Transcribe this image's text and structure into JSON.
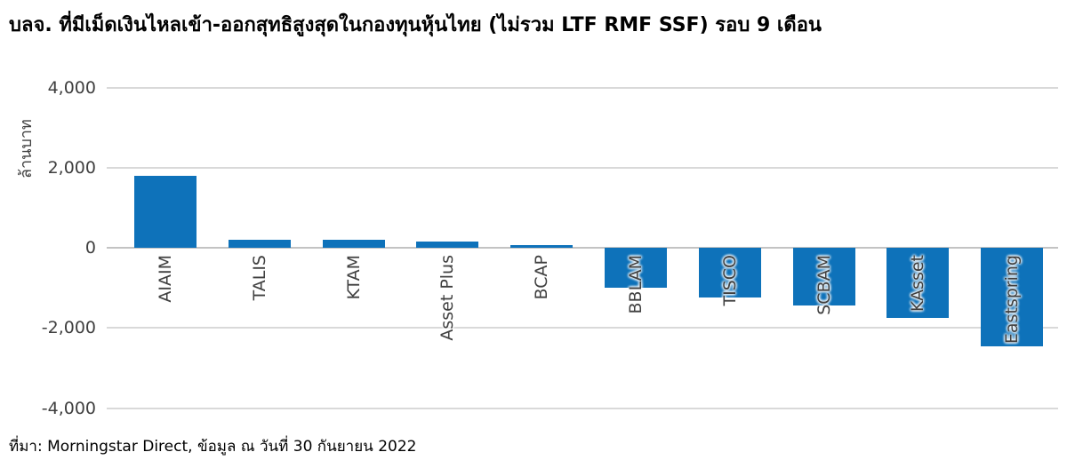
{
  "title": "บลจ. ที่มีเม็ดเงินไหลเข้า-ออกสุทธิสูงสุดในกองทุนหุ้นไทย (ไม่รวม LTF RMF SSF) รอบ 9 เดือน",
  "source_note": "ที่มา: Morningstar Direct, ข้อมูล ณ วันที่ 30 กันยายน 2022",
  "colors": {
    "bar": "#0e72ba",
    "gridline": "#d9d9d9",
    "zero_line": "#c3c3c3",
    "title_text": "#000000",
    "axis_text": "#3f3f3f"
  },
  "chart_data": {
    "type": "bar",
    "categories": [
      "AIAIM",
      "TALIS",
      "KTAM",
      "Asset Plus",
      "BCAP",
      "BBLAM",
      "TISCO",
      "SCBAM",
      "KAsset",
      "Eastspring"
    ],
    "values": [
      1800,
      200,
      200,
      150,
      60,
      -1000,
      -1250,
      -1450,
      -1750,
      -2450
    ],
    "title": "บลจ. ที่มีเม็ดเงินไหลเข้า-ออกสุทธิสูงสุดในกองทุนหุ้นไทย (ไม่รวม LTF RMF SSF) รอบ 9 เดือน",
    "xlabel": "",
    "ylabel": "ล้านบาท",
    "ylim": [
      -4000,
      4000
    ],
    "ytick_interval": 2000,
    "yticks": [
      4000,
      2000,
      0,
      -2000,
      -4000
    ],
    "ytick_labels": [
      "4,000",
      "2,000",
      "0",
      "-2,000",
      "-4,000"
    ],
    "grid": true,
    "legend": false,
    "bar_orientation": "vertical",
    "category_label_rotation": -90
  }
}
